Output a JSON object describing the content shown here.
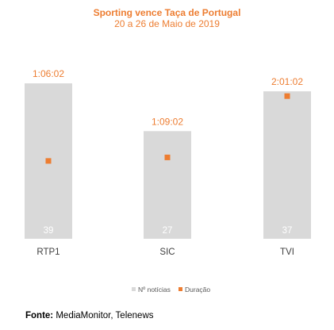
{
  "chart_data": {
    "type": "bar",
    "title": "Sporting vence Taça de Portugal",
    "subtitle": "20 a 26 de Maio de 2019",
    "categories": [
      "RTP1",
      "SIC",
      "TVI"
    ],
    "series": [
      {
        "name": "Nº notícias",
        "type": "bar",
        "values": [
          39,
          27,
          37
        ],
        "color": "#D9D9D9",
        "labels": [
          "39",
          "27",
          "37"
        ]
      },
      {
        "name": "Duração",
        "type": "scatter",
        "values": [
          66.03,
          69.03,
          121.03
        ],
        "labels": [
          "1:06:02",
          "1:09:02",
          "2:01:02"
        ],
        "color": "#ED7D31"
      }
    ],
    "bar_ylim": [
      0,
      42
    ],
    "duration_ylim": [
      0,
      142
    ],
    "legend_position": "bottom",
    "grid": false
  },
  "source": {
    "label": "Fonte:",
    "text": "MediaMonitor, Telenews"
  }
}
